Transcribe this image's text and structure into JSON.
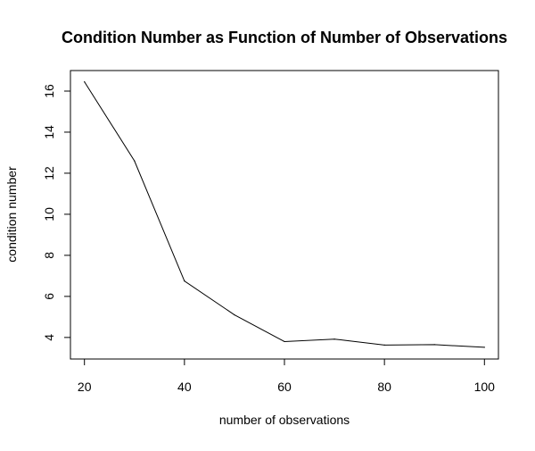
{
  "chart_data": {
    "type": "line",
    "title": "Condition Number as Function of Number of Observations",
    "xlabel": "number of observations",
    "ylabel": "condition number",
    "x": [
      20,
      30,
      40,
      50,
      60,
      70,
      80,
      90,
      100
    ],
    "series": [
      {
        "values": [
          16.45,
          12.6,
          6.75,
          5.1,
          3.8,
          3.92,
          3.63,
          3.65,
          3.52
        ]
      }
    ],
    "xlim": [
      17.2,
      102.8
    ],
    "ylim": [
      2.95,
      17.0
    ],
    "xticks": [
      20,
      40,
      60,
      80,
      100
    ],
    "yticks": [
      4,
      6,
      8,
      10,
      12,
      14,
      16
    ],
    "grid": false,
    "line_color": "#000000"
  }
}
